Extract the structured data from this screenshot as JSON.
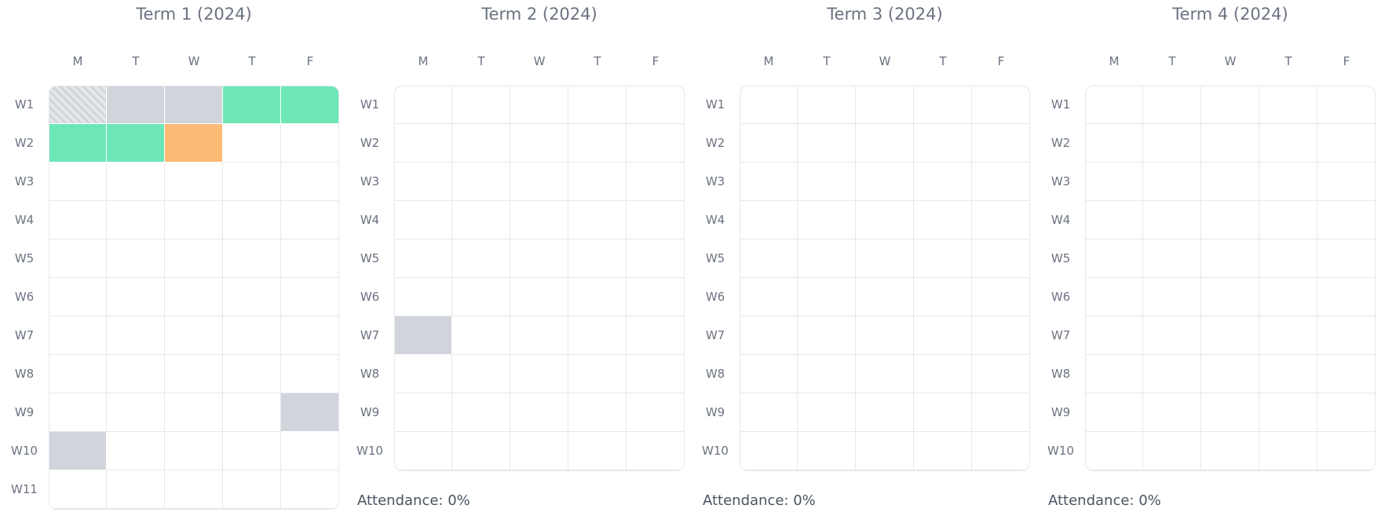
{
  "terms": [
    {
      "title": "Term 1 (2024)",
      "days": [
        "M",
        "T",
        "W",
        "T",
        "F"
      ],
      "weeks": [
        "W1",
        "W2",
        "W3",
        "W4",
        "W5",
        "W6",
        "W7",
        "W8",
        "W9",
        "W10",
        "W11"
      ],
      "cells": [
        [
          {
            "color": "#d1d5db",
            "pattern": "hatched"
          },
          "#d1d5db",
          "#d1d5db",
          "#6ee7b7",
          "#6ee7b7"
        ],
        [
          "#6ee7b7",
          "#6ee7b7",
          "#fdba74",
          null,
          null
        ],
        [
          null,
          null,
          null,
          null,
          null
        ],
        [
          null,
          null,
          null,
          null,
          null
        ],
        [
          null,
          null,
          null,
          null,
          null
        ],
        [
          null,
          null,
          null,
          null,
          null
        ],
        [
          null,
          null,
          null,
          null,
          null
        ],
        [
          null,
          null,
          null,
          null,
          null
        ],
        [
          null,
          null,
          null,
          null,
          "#d1d5db"
        ],
        [
          "#d1d5db",
          null,
          null,
          null,
          null
        ],
        [
          null,
          null,
          null,
          null,
          null
        ]
      ]
    },
    {
      "title": "Term 2 (2024)",
      "days": [
        "M",
        "T",
        "W",
        "T",
        "F"
      ],
      "weeks": [
        "W1",
        "W2",
        "W3",
        "W4",
        "W5",
        "W6",
        "W7",
        "W8",
        "W9",
        "W10"
      ],
      "cells": [
        [
          null,
          null,
          null,
          null,
          null
        ],
        [
          null,
          null,
          null,
          null,
          null
        ],
        [
          null,
          null,
          null,
          null,
          null
        ],
        [
          null,
          null,
          null,
          null,
          null
        ],
        [
          null,
          null,
          null,
          null,
          null
        ],
        [
          null,
          null,
          null,
          null,
          null
        ],
        [
          "#d1d5db",
          null,
          null,
          null,
          null
        ],
        [
          null,
          null,
          null,
          null,
          null
        ],
        [
          null,
          null,
          null,
          null,
          null
        ],
        [
          null,
          null,
          null,
          null,
          null
        ]
      ],
      "attendance": "Attendance: 0%"
    },
    {
      "title": "Term 3 (2024)",
      "days": [
        "M",
        "T",
        "W",
        "T",
        "F"
      ],
      "weeks": [
        "W1",
        "W2",
        "W3",
        "W4",
        "W5",
        "W6",
        "W7",
        "W8",
        "W9",
        "W10"
      ],
      "cells": [
        [
          null,
          null,
          null,
          null,
          null
        ],
        [
          null,
          null,
          null,
          null,
          null
        ],
        [
          null,
          null,
          null,
          null,
          null
        ],
        [
          null,
          null,
          null,
          null,
          null
        ],
        [
          null,
          null,
          null,
          null,
          null
        ],
        [
          null,
          null,
          null,
          null,
          null
        ],
        [
          null,
          null,
          null,
          null,
          null
        ],
        [
          null,
          null,
          null,
          null,
          null
        ],
        [
          null,
          null,
          null,
          null,
          null
        ],
        [
          null,
          null,
          null,
          null,
          null
        ]
      ],
      "attendance": "Attendance: 0%"
    },
    {
      "title": "Term 4 (2024)",
      "days": [
        "M",
        "T",
        "W",
        "T",
        "F"
      ],
      "weeks": [
        "W1",
        "W2",
        "W3",
        "W4",
        "W5",
        "W6",
        "W7",
        "W8",
        "W9",
        "W10"
      ],
      "cells": [
        [
          null,
          null,
          null,
          null,
          null
        ],
        [
          null,
          null,
          null,
          null,
          null
        ],
        [
          null,
          null,
          null,
          null,
          null
        ],
        [
          null,
          null,
          null,
          null,
          null
        ],
        [
          null,
          null,
          null,
          null,
          null
        ],
        [
          null,
          null,
          null,
          null,
          null
        ],
        [
          null,
          null,
          null,
          null,
          null
        ],
        [
          null,
          null,
          null,
          null,
          null
        ],
        [
          null,
          null,
          null,
          null,
          null
        ],
        [
          null,
          null,
          null,
          null,
          null
        ]
      ],
      "attendance": "Attendance: 0%"
    }
  ]
}
